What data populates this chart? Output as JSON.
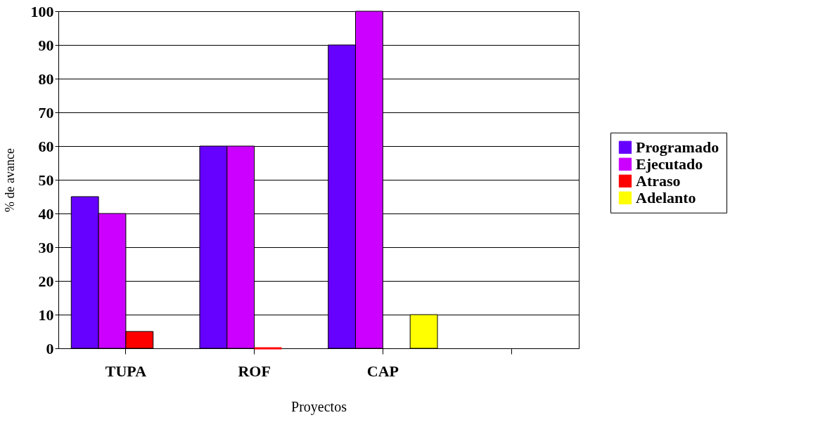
{
  "chart_data": {
    "type": "bar",
    "xlabel": "Proyectos",
    "ylabel": "% de avance",
    "categories": [
      "TUPA",
      "ROF",
      "CAP",
      null
    ],
    "series": [
      {
        "name": "Programado",
        "color": "#6600ff",
        "values": [
          45,
          60,
          90,
          null
        ]
      },
      {
        "name": "Ejecutado",
        "color": "#cc00ff",
        "values": [
          40,
          60,
          100,
          null
        ]
      },
      {
        "name": "Atraso",
        "color": "#ff0000",
        "values": [
          5,
          0,
          null,
          null
        ]
      },
      {
        "name": "Adelanto",
        "color": "#ffff00",
        "values": [
          null,
          null,
          10,
          null
        ]
      }
    ],
    "ylim": [
      0,
      100
    ],
    "yticks": [
      0,
      10,
      20,
      30,
      40,
      50,
      60,
      70,
      80,
      90,
      100
    ],
    "grid": "y",
    "legend": "right"
  }
}
